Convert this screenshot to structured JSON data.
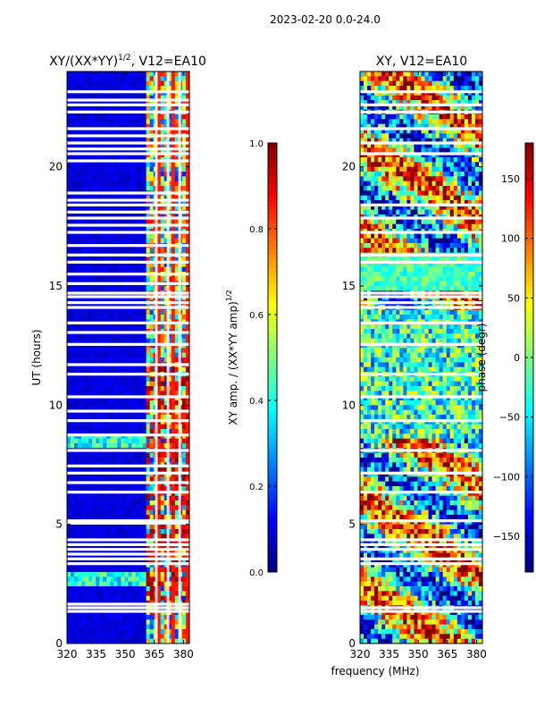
{
  "figure_title": "2023-02-20 0.0-24.0",
  "xlabel": "frequency (MHz)",
  "colors": {
    "cmap": [
      "#00007f",
      "#0000ff",
      "#007fff",
      "#00ffff",
      "#7fff7f",
      "#ffff00",
      "#ff7f00",
      "#ff0000",
      "#7f0000"
    ],
    "gap": "#ffffff"
  },
  "chart_data": [
    {
      "type": "heatmap",
      "title_main": "XY/(XX*YY)",
      "title_sup": "1/2",
      "title_rest": ", V12=EA10",
      "ylabel": "UT (hours)",
      "xlim": [
        320,
        383
      ],
      "ylim": [
        0,
        24
      ],
      "xticks": [
        "320",
        "335",
        "350",
        "365",
        "380"
      ],
      "xtick_values": [
        320,
        335,
        350,
        365,
        380
      ],
      "yticks": [
        "0",
        "5",
        "10",
        "15",
        "20"
      ],
      "ytick_values": [
        0,
        5,
        10,
        15,
        20
      ],
      "colorbar": {
        "label_main": "XY amp. / (XX*YY amp)",
        "label_sup": "1/2",
        "range": [
          0.0,
          1.0
        ],
        "ticks": [
          "0.0",
          "0.2",
          "0.4",
          "0.6",
          "0.8",
          "1.0"
        ],
        "tick_values": [
          0.0,
          0.2,
          0.4,
          0.6,
          0.8,
          1.0
        ]
      },
      "gaps_ut": [
        1.35,
        1.5,
        1.65,
        3.35,
        3.55,
        3.75,
        3.95,
        4.15,
        4.35,
        5.05,
        5.15,
        6.35,
        6.75,
        7.15,
        7.45,
        8.1,
        8.75,
        9.35,
        9.75,
        10.35,
        11.3,
        11.7,
        12.55,
        13.05,
        13.45,
        14.1,
        14.3,
        14.55,
        14.7,
        15.1,
        15.5,
        16.0,
        16.3,
        16.7,
        17.25,
        17.55,
        17.85,
        18.1,
        18.4,
        18.6,
        18.9,
        20.25,
        20.55,
        20.75,
        21.0,
        21.3,
        21.6,
        22.3,
        22.6,
        22.8,
        23.15
      ]
    },
    {
      "type": "heatmap",
      "title": "XY, V12=EA10",
      "xlim": [
        320,
        383
      ],
      "ylim": [
        0,
        24
      ],
      "xticks": [
        "320",
        "335",
        "350",
        "365",
        "380"
      ],
      "xtick_values": [
        320,
        335,
        350,
        365,
        380
      ],
      "yticks": [
        "0",
        "5",
        "10",
        "15",
        "20"
      ],
      "ytick_values": [
        0,
        5,
        10,
        15,
        20
      ],
      "colorbar": {
        "label": "phase (degr)",
        "range": [
          -180,
          180
        ],
        "ticks": [
          "−150",
          "−100",
          "−50",
          "0",
          "50",
          "100",
          "150"
        ],
        "tick_values": [
          -150,
          -100,
          -50,
          0,
          50,
          100,
          150
        ]
      },
      "gaps_ut": [
        1.35,
        1.5,
        3.35,
        3.55,
        3.95,
        4.15,
        4.35,
        5.15,
        6.35,
        7.15,
        8.1,
        9.35,
        10.35,
        11.3,
        12.55,
        13.45,
        14.1,
        14.3,
        14.55,
        14.7,
        16.0,
        16.3,
        17.25,
        17.85,
        18.4,
        20.55,
        21.0,
        21.6,
        22.3,
        22.6,
        23.15
      ]
    }
  ]
}
